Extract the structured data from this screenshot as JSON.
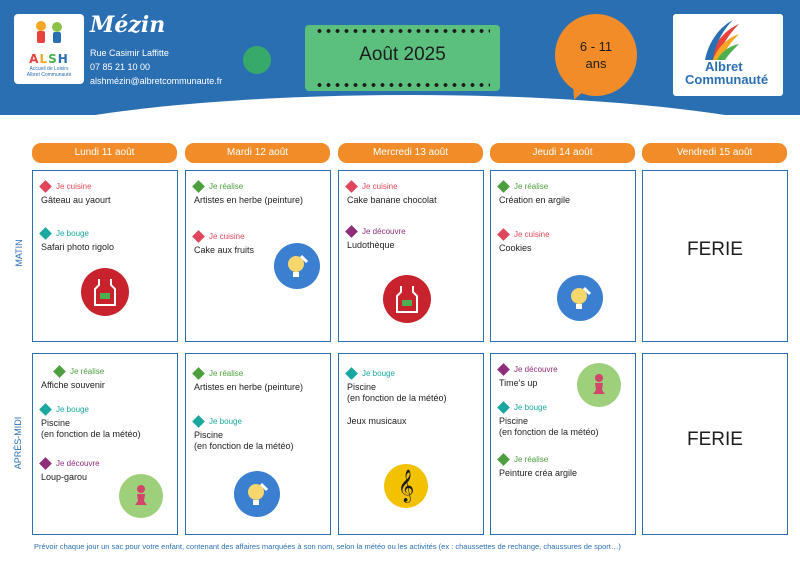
{
  "header": {
    "center_name": "Mézin",
    "address": "Rue Casimir Laffitte",
    "phone": "07 85 21 10 00",
    "email": "alshmézin@albretcommunaute.fr",
    "month": "Août 2025",
    "age_range_line1": "6 - 11",
    "age_range_line2": "ans",
    "logo_alsh": {
      "letters": [
        "A",
        "L",
        "S",
        "H"
      ],
      "subtitle_line1": "Accueil de Loisirs",
      "subtitle_line2": "Albret Communauté"
    },
    "logo_albret": {
      "line1": "Albret",
      "line2": "Communauté"
    }
  },
  "sections": {
    "morning": "MATIN",
    "afternoon": "APRÈS-MIDI"
  },
  "days": [
    {
      "label": "Lundi 11 août",
      "morning": [
        {
          "category": "Je cuisine",
          "color": "red",
          "text": "Gâteau au yaourt"
        },
        {
          "category": "Je bouge",
          "color": "teal",
          "text": "Safari photo rigolo"
        }
      ],
      "morning_icon": "apron-icon",
      "afternoon": [
        {
          "category": "Je réalise",
          "color": "green",
          "text": "Affiche souvenir"
        },
        {
          "category": "Je bouge",
          "color": "teal",
          "text_line1": "Piscine",
          "text_line2": "(en fonction de la météo)"
        },
        {
          "category": "Je découvre",
          "color": "purple",
          "text": "Loup-garou"
        }
      ],
      "afternoon_icon": "pawn-icon"
    },
    {
      "label": "Mardi 12 août",
      "morning": [
        {
          "category": "Je réalise",
          "color": "green",
          "text": "Artistes en herbe (peinture)"
        },
        {
          "category": "Je cuisine",
          "color": "red",
          "text": "Cake aux fruits"
        }
      ],
      "morning_icon": "lightbulb-pencil-icon",
      "afternoon": [
        {
          "category": "Je réalise",
          "color": "green",
          "text": "Artistes en herbe (peinture)"
        },
        {
          "category": "Je bouge",
          "color": "teal",
          "text_line1": "Piscine",
          "text_line2": "(en fonction de la météo)"
        }
      ],
      "afternoon_icon": "lightbulb-pencil-icon"
    },
    {
      "label": "Mercredi 13 août",
      "morning": [
        {
          "category": "Je cuisine",
          "color": "red",
          "text": "Cake banane chocolat"
        },
        {
          "category": "Je découvre",
          "color": "purple",
          "text": "Ludothèque"
        }
      ],
      "morning_icon": "apron-icon",
      "afternoon": [
        {
          "category": "Je bouge",
          "color": "teal",
          "text_line1": "Piscine",
          "text_line2": "(en fonction de la météo)"
        },
        {
          "text": "Jeux musicaux"
        }
      ],
      "afternoon_icon": "treble-clef-icon"
    },
    {
      "label": "Jeudi 14 août",
      "morning": [
        {
          "category": "Je réalise",
          "color": "green",
          "text": "Création en argile"
        },
        {
          "category": "Je cuisine",
          "color": "red",
          "text": "Cookies"
        }
      ],
      "morning_icon": "lightbulb-pencil-icon",
      "afternoon": [
        {
          "category": "Je découvre",
          "color": "purple",
          "text": "Time's up"
        },
        {
          "category": "Je bouge",
          "color": "teal",
          "text_line1": "Piscine",
          "text_line2": "(en fonction de la météo)"
        },
        {
          "category": "Je réalise",
          "color": "green",
          "text": "Peinture créa argile"
        }
      ],
      "afternoon_icon": "pawn-icon"
    },
    {
      "label": "Vendredi 15 août",
      "morning_text": "FERIE",
      "afternoon_text": "FERIE"
    }
  ],
  "footer": {
    "note": "Prévoir chaque jour un sac pour votre enfant, contenant des affaires marquées à son nom, selon la météo ou les activités (ex : chaussettes de rechange, chaussures de sport…)"
  }
}
